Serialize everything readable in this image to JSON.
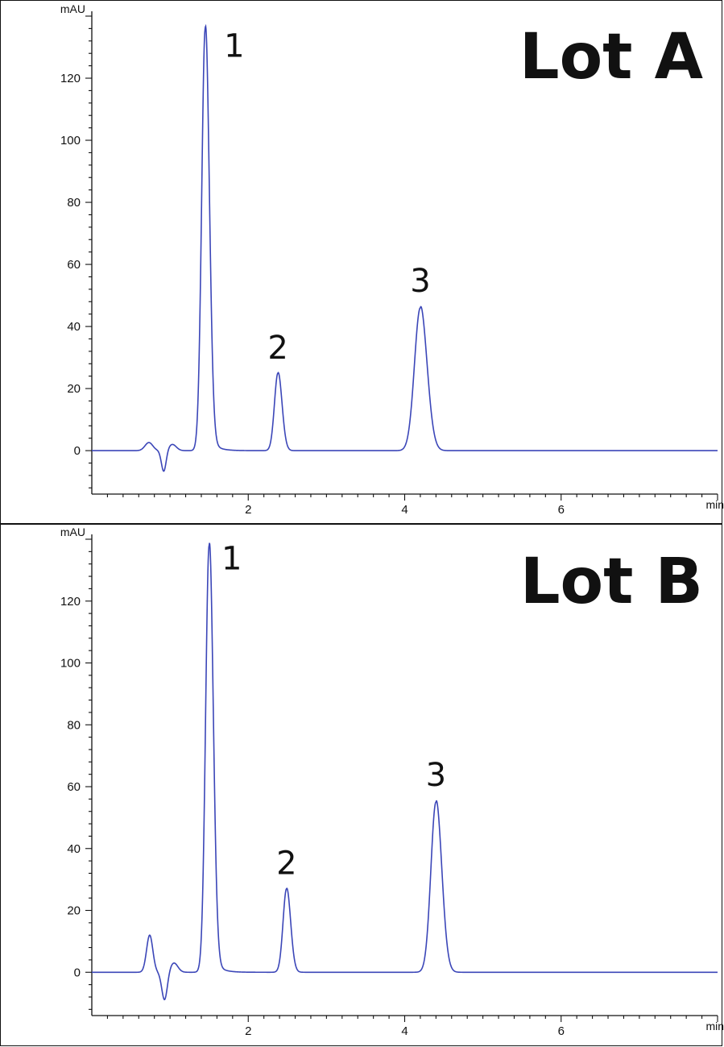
{
  "chart_data": [
    {
      "type": "line",
      "title": "Lot A",
      "ylabel": "mAU",
      "xlabel": "min",
      "xlim": [
        0,
        8
      ],
      "ylim": [
        -14,
        140
      ],
      "xticks": [
        2,
        4,
        6
      ],
      "yticks": [
        0,
        20,
        40,
        60,
        80,
        100,
        120
      ],
      "color": "#3b46b8",
      "disturbance": [
        {
          "t": 0.73,
          "h": 2.6,
          "w": 0.05
        },
        {
          "t": 0.92,
          "h": -6.8,
          "w": 0.03
        },
        {
          "t": 1.03,
          "h": 2.0,
          "w": 0.05
        }
      ],
      "series": [
        {
          "peaks": [
            {
              "label": "1",
              "rt": 1.45,
              "height": 136,
              "sigma": 0.045,
              "tail": 0.09
            },
            {
              "label": "2",
              "rt": 2.38,
              "height": 25,
              "sigma": 0.045,
              "tail": 0.03
            },
            {
              "label": "3",
              "rt": 4.2,
              "height": 46,
              "sigma": 0.075,
              "tail": 0.03
            }
          ]
        }
      ]
    },
    {
      "type": "line",
      "title": "Lot B",
      "ylabel": "mAU",
      "xlabel": "min",
      "xlim": [
        0,
        8
      ],
      "ylim": [
        -14,
        140
      ],
      "xticks": [
        2,
        4,
        6
      ],
      "yticks": [
        0,
        20,
        40,
        60,
        80,
        100,
        120
      ],
      "color": "#3b46b8",
      "disturbance": [
        {
          "t": 0.74,
          "h": 12,
          "w": 0.04
        },
        {
          "t": 0.93,
          "h": -9,
          "w": 0.035
        },
        {
          "t": 1.05,
          "h": 3,
          "w": 0.05
        }
      ],
      "series": [
        {
          "peaks": [
            {
              "label": "1",
              "rt": 1.5,
              "height": 138,
              "sigma": 0.045,
              "tail": 0.09
            },
            {
              "label": "2",
              "rt": 2.49,
              "height": 27,
              "sigma": 0.045,
              "tail": 0.03
            },
            {
              "label": "3",
              "rt": 4.4,
              "height": 55,
              "sigma": 0.065,
              "tail": 0.03
            }
          ]
        }
      ]
    }
  ]
}
